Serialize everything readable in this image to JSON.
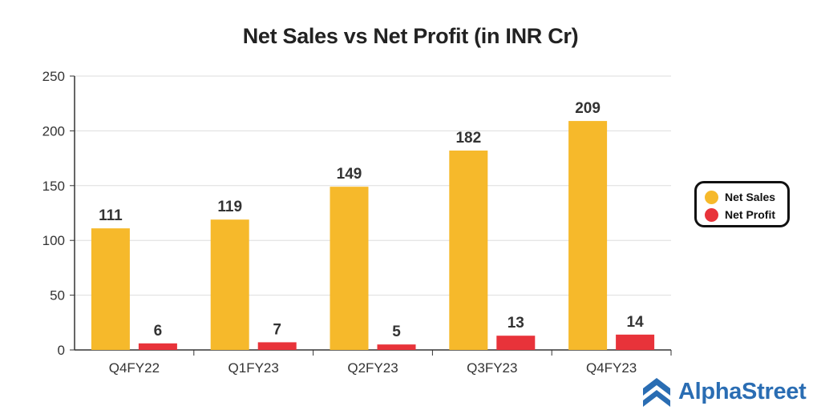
{
  "chart_data": {
    "type": "bar",
    "title": "Net Sales vs Net Profit (in INR Cr)",
    "categories": [
      "Q4FY22",
      "Q1FY23",
      "Q2FY23",
      "Q3FY23",
      "Q4FY23"
    ],
    "series": [
      {
        "name": "Net Sales",
        "values": [
          111,
          119,
          149,
          182,
          209
        ],
        "color": "#f6b92b"
      },
      {
        "name": "Net Profit",
        "values": [
          6,
          7,
          5,
          13,
          14
        ],
        "color": "#e8333a"
      }
    ],
    "ylim": [
      0,
      250
    ],
    "yticks": [
      0,
      50,
      100,
      150,
      200,
      250
    ],
    "grid": true,
    "legend_position": "right"
  },
  "brand": {
    "name": "AlphaStreet",
    "color": "#2a6db3",
    "icon": "alphastreet-logo-icon"
  }
}
